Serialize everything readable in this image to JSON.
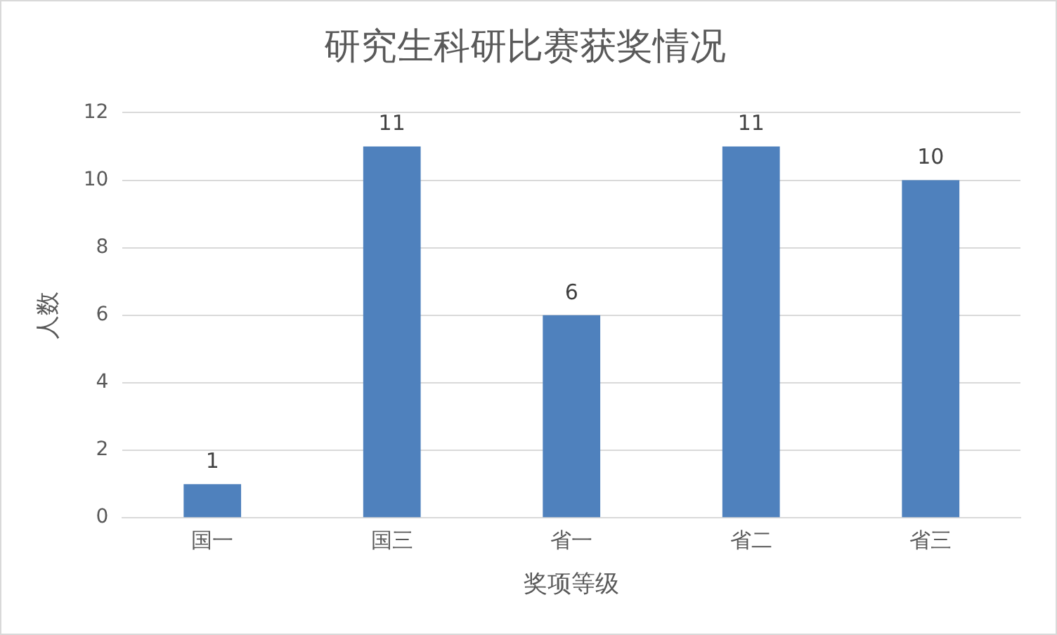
{
  "chart_data": {
    "type": "bar",
    "title": "研究生科研比赛获奖情况",
    "xlabel": "奖项等级",
    "ylabel": "人数",
    "categories": [
      "国一",
      "国三",
      "省一",
      "省二",
      "省三"
    ],
    "values": [
      1,
      11,
      6,
      11,
      10
    ],
    "color": "#4f81bd",
    "ylim": [
      0,
      12
    ],
    "yticks": [
      0,
      2,
      4,
      6,
      8,
      10,
      12
    ],
    "grid": "y",
    "data_labels": true
  }
}
